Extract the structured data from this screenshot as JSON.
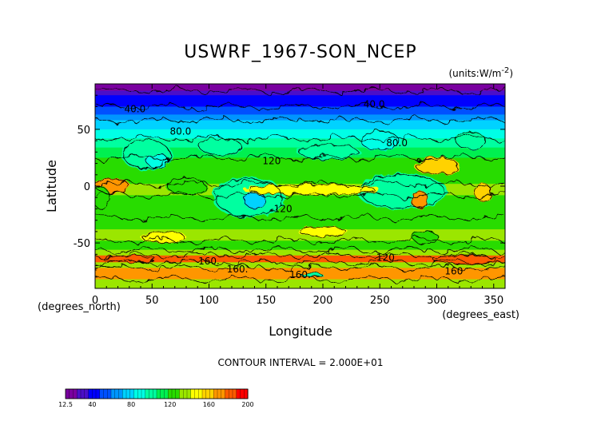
{
  "chart_data": {
    "type": "heatmap",
    "title": "USWRF_1967-SON_NCEP",
    "units_label": "(units:W/m^2)",
    "units_prefix": "(units:W/m",
    "units_exp": "-2",
    "units_suffix": ")",
    "xlabel": "Longitude",
    "ylabel": "Latitude",
    "x_unit_label": "(degrees_east)",
    "y_unit_label": "(degrees_north)",
    "xlim": [
      0,
      360
    ],
    "ylim": [
      -90,
      90
    ],
    "x_ticks": [
      0,
      50,
      100,
      150,
      200,
      250,
      300,
      350
    ],
    "y_ticks": [
      -50,
      0,
      50
    ],
    "contour_interval_text": "CONTOUR INTERVAL = 2.000E+01",
    "contour_labels": [
      {
        "text": "40.0",
        "lon": 35,
        "lat": 68
      },
      {
        "text": "40.0",
        "lon": 245,
        "lat": 72
      },
      {
        "text": "80.0",
        "lon": 75,
        "lat": 48
      },
      {
        "text": "80.0",
        "lon": 265,
        "lat": 38
      },
      {
        "text": "120",
        "lon": 155,
        "lat": 22
      },
      {
        "text": "120",
        "lon": 165,
        "lat": -20
      },
      {
        "text": "120",
        "lon": 255,
        "lat": -63
      },
      {
        "text": "160.",
        "lon": 100,
        "lat": -66
      },
      {
        "text": "160.",
        "lon": 125,
        "lat": -73
      },
      {
        "text": "160.",
        "lon": 180,
        "lat": -78
      },
      {
        "text": "160",
        "lon": 315,
        "lat": -75
      }
    ],
    "colorbar": {
      "min": 12.5,
      "max": 200,
      "tick_values": [
        12.5,
        40,
        80,
        120,
        160,
        200
      ],
      "tick_labels": [
        "12.5",
        "40",
        "80",
        "120",
        "160",
        "200"
      ],
      "colors": [
        "#7a00a0",
        "#4b0fc8",
        "#0000ff",
        "#0050ff",
        "#0096ff",
        "#00d2ff",
        "#00ffe6",
        "#00ffa0",
        "#00f050",
        "#28dc00",
        "#9be600",
        "#ffff00",
        "#ffd200",
        "#ff9600",
        "#ff5a00",
        "#ff0000"
      ]
    }
  }
}
